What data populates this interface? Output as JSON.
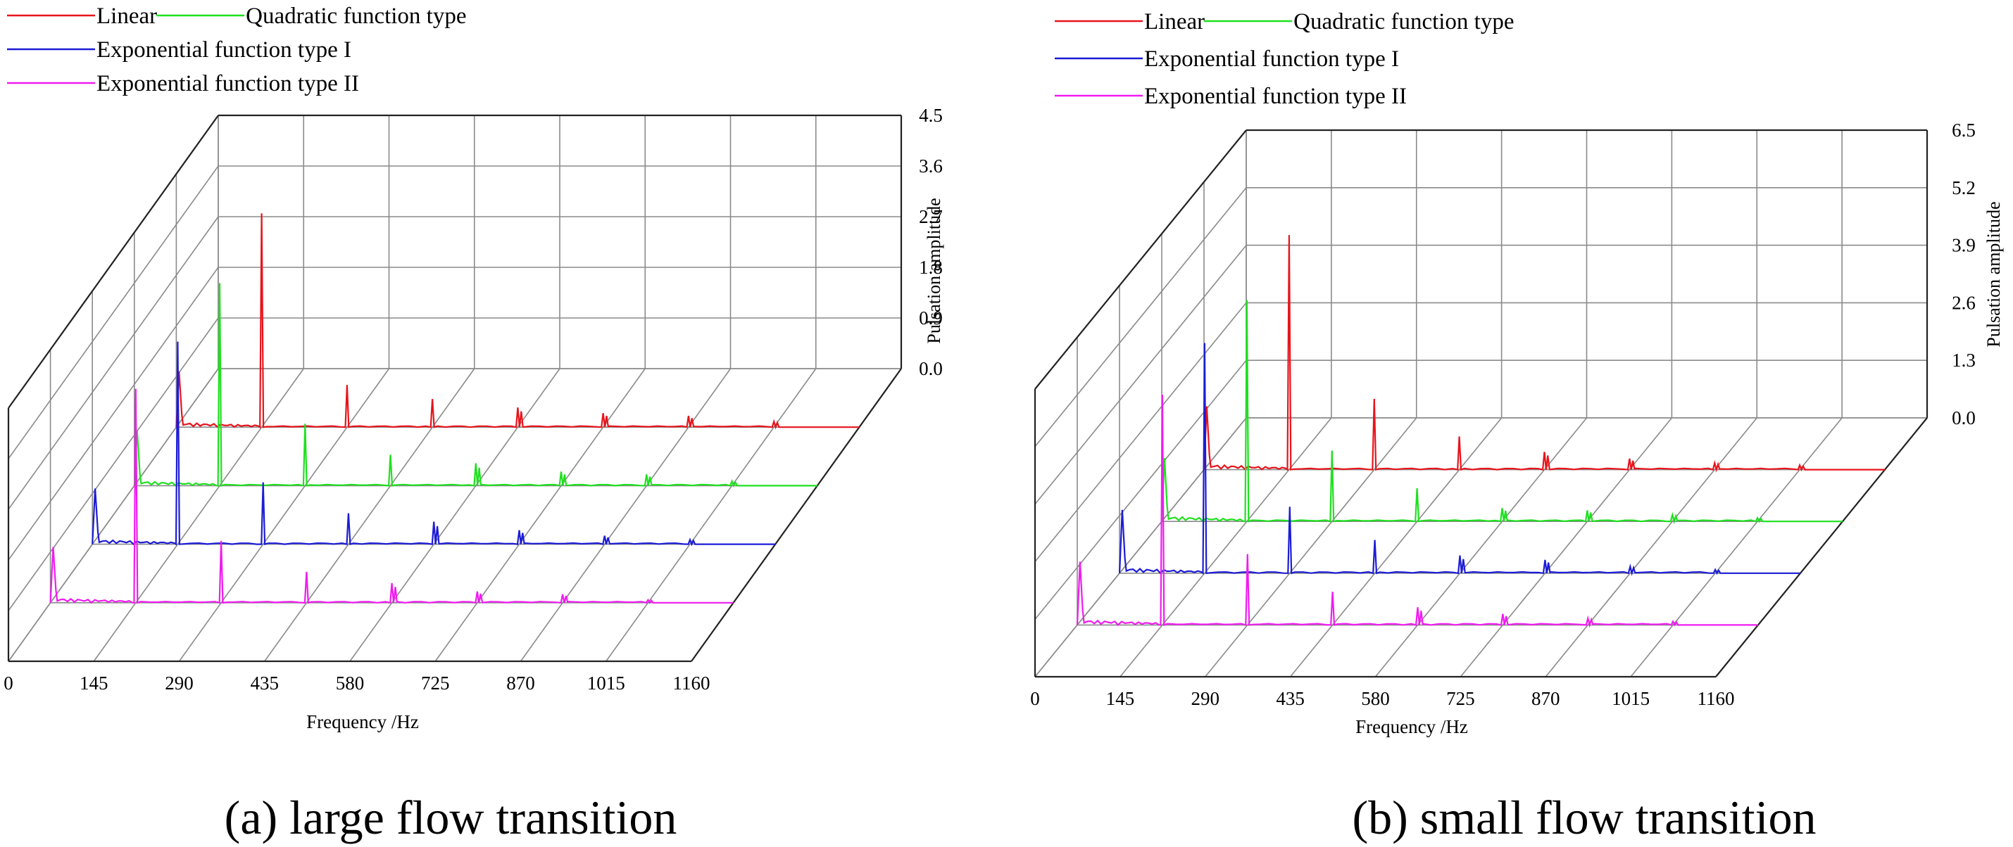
{
  "chart_data": [
    {
      "type": "line",
      "subtype": "3d-waterfall-spectrum",
      "title": "(a) large flow transition",
      "xlabel": "Frequency /Hz",
      "zlabel": "Pulsation amplitude",
      "x_ticks": [
        "0",
        "145",
        "290",
        "435",
        "580",
        "725",
        "870",
        "1015",
        "1160"
      ],
      "z_ticks": [
        "0.0",
        "0.9",
        "1.8",
        "2.7",
        "3.6",
        "4.5"
      ],
      "xlim": [
        0,
        1160
      ],
      "zlim": [
        0,
        4.5
      ],
      "grid": true,
      "legend": [
        {
          "label": "Linear",
          "color": "#e8141b"
        },
        {
          "label": "Quadratic function type",
          "color": "#1fe01f"
        },
        {
          "label": "Exponential function type I",
          "color": "#1c1cd6"
        },
        {
          "label": "Exponential function type II",
          "color": "#f01bf0"
        }
      ],
      "series": [
        {
          "name": "Linear",
          "color": "#e8141b",
          "peaks": [
            {
              "f": 145,
              "a": 3.8
            },
            {
              "f": 290,
              "a": 0.75
            },
            {
              "f": 435,
              "a": 0.5
            },
            {
              "f": 580,
              "a": 0.35
            },
            {
              "f": 725,
              "a": 0.25
            },
            {
              "f": 870,
              "a": 0.2
            },
            {
              "f": 1015,
              "a": 0.1
            }
          ]
        },
        {
          "name": "Quadratic function type",
          "color": "#1fe01f",
          "peaks": [
            {
              "f": 145,
              "a": 3.6
            },
            {
              "f": 290,
              "a": 1.1
            },
            {
              "f": 435,
              "a": 0.55
            },
            {
              "f": 580,
              "a": 0.4
            },
            {
              "f": 725,
              "a": 0.25
            },
            {
              "f": 870,
              "a": 0.2
            },
            {
              "f": 1015,
              "a": 0.08
            }
          ]
        },
        {
          "name": "Exponential function type I",
          "color": "#1c1cd6",
          "peaks": [
            {
              "f": 145,
              "a": 3.6
            },
            {
              "f": 290,
              "a": 1.1
            },
            {
              "f": 435,
              "a": 0.55
            },
            {
              "f": 580,
              "a": 0.4
            },
            {
              "f": 725,
              "a": 0.25
            },
            {
              "f": 870,
              "a": 0.15
            },
            {
              "f": 1015,
              "a": 0.08
            }
          ]
        },
        {
          "name": "Exponential function type II",
          "color": "#f01bf0",
          "peaks": [
            {
              "f": 145,
              "a": 3.8
            },
            {
              "f": 290,
              "a": 1.1
            },
            {
              "f": 435,
              "a": 0.55
            },
            {
              "f": 580,
              "a": 0.35
            },
            {
              "f": 725,
              "a": 0.2
            },
            {
              "f": 870,
              "a": 0.15
            },
            {
              "f": 1015,
              "a": 0.05
            }
          ]
        }
      ]
    },
    {
      "type": "line",
      "subtype": "3d-waterfall-spectrum",
      "title": "(b) small flow transition",
      "xlabel": "Frequency /Hz",
      "zlabel": "Pulsation amplitude",
      "x_ticks": [
        "0",
        "145",
        "290",
        "435",
        "580",
        "725",
        "870",
        "1015",
        "1160"
      ],
      "z_ticks": [
        "0.0",
        "1.3",
        "2.6",
        "3.9",
        "5.2",
        "6.5"
      ],
      "xlim": [
        0,
        1160
      ],
      "zlim": [
        0,
        6.5
      ],
      "grid": true,
      "legend": [
        {
          "label": "Linear",
          "color": "#e8141b"
        },
        {
          "label": "Quadratic function type",
          "color": "#1fe01f"
        },
        {
          "label": "Exponential function type I",
          "color": "#1c1cd6"
        },
        {
          "label": "Exponential function type II",
          "color": "#f01bf0"
        }
      ],
      "series": [
        {
          "name": "Linear",
          "color": "#e8141b",
          "peaks": [
            {
              "f": 145,
              "a": 5.3
            },
            {
              "f": 290,
              "a": 1.6
            },
            {
              "f": 435,
              "a": 0.75
            },
            {
              "f": 580,
              "a": 0.4
            },
            {
              "f": 725,
              "a": 0.25
            },
            {
              "f": 870,
              "a": 0.15
            },
            {
              "f": 1015,
              "a": 0.1
            }
          ]
        },
        {
          "name": "Quadratic function type",
          "color": "#1fe01f",
          "peaks": [
            {
              "f": 145,
              "a": 5.0
            },
            {
              "f": 290,
              "a": 1.6
            },
            {
              "f": 435,
              "a": 0.75
            },
            {
              "f": 580,
              "a": 0.3
            },
            {
              "f": 725,
              "a": 0.25
            },
            {
              "f": 870,
              "a": 0.15
            },
            {
              "f": 1015,
              "a": 0.08
            }
          ]
        },
        {
          "name": "Exponential function type I",
          "color": "#1c1cd6",
          "peaks": [
            {
              "f": 145,
              "a": 5.2
            },
            {
              "f": 290,
              "a": 1.5
            },
            {
              "f": 435,
              "a": 0.75
            },
            {
              "f": 580,
              "a": 0.4
            },
            {
              "f": 725,
              "a": 0.3
            },
            {
              "f": 870,
              "a": 0.15
            },
            {
              "f": 1015,
              "a": 0.08
            }
          ]
        },
        {
          "name": "Exponential function type II",
          "color": "#f01bf0",
          "peaks": [
            {
              "f": 145,
              "a": 5.2
            },
            {
              "f": 290,
              "a": 1.6
            },
            {
              "f": 435,
              "a": 0.75
            },
            {
              "f": 580,
              "a": 0.4
            },
            {
              "f": 725,
              "a": 0.25
            },
            {
              "f": 870,
              "a": 0.15
            },
            {
              "f": 1015,
              "a": 0.08
            }
          ]
        }
      ]
    }
  ]
}
